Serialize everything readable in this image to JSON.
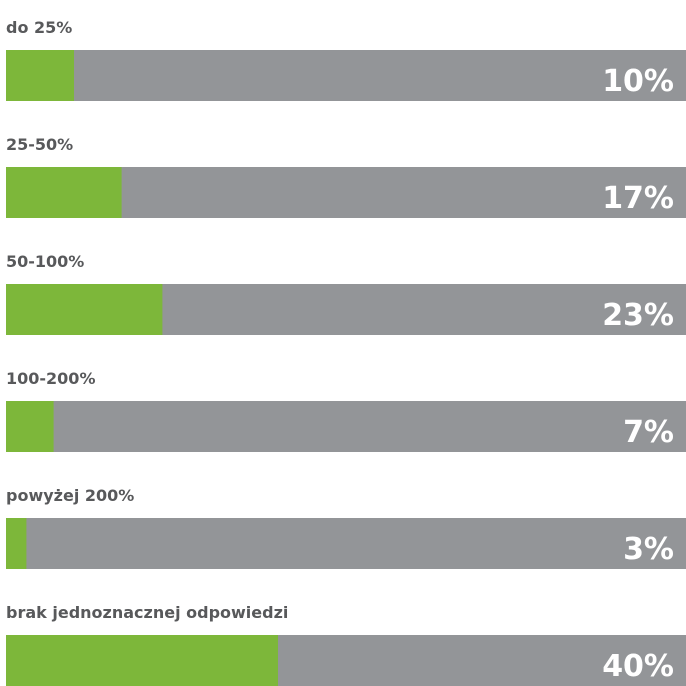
{
  "chart_data": {
    "type": "bar",
    "orientation": "horizontal",
    "categories": [
      "do 25%",
      "25-50%",
      "50-100%",
      "100-200%",
      "powyżej 200%",
      "brak jednoznacznej odpowiedzi"
    ],
    "values": [
      10,
      17,
      23,
      7,
      3,
      40
    ],
    "value_labels": [
      "10%",
      "17%",
      "23%",
      "7%",
      "3%",
      "40%"
    ],
    "color": "#7db73a",
    "track_color": "#939598",
    "xlim": [
      0,
      100
    ]
  }
}
